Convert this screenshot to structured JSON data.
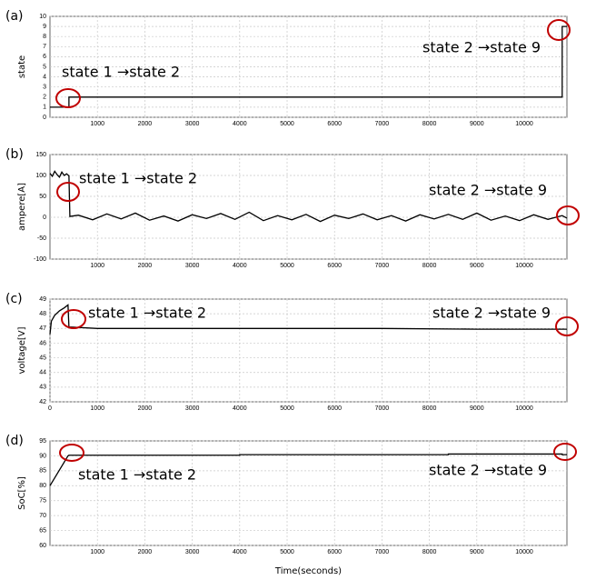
{
  "chart_data": [
    {
      "type": "line",
      "panel_label": "(a)",
      "ylabel": "state",
      "x": [
        0,
        400,
        400,
        10800,
        10800,
        10900
      ],
      "values": [
        1,
        1,
        2,
        2,
        9,
        9
      ],
      "color": "#000000",
      "xlim": [
        0,
        10900
      ],
      "xticks": [
        1000,
        2000,
        3000,
        4000,
        5000,
        6000,
        7000,
        8000,
        9000,
        10000
      ],
      "ylim": [
        0,
        10
      ],
      "yticks": [
        0,
        1,
        2,
        3,
        4,
        5,
        6,
        7,
        8,
        9,
        10
      ],
      "grid": true,
      "annotations": [
        "state 1 →state 2",
        "state 2 →state 9"
      ]
    },
    {
      "type": "line",
      "panel_label": "(b)",
      "ylabel": "ampere[A]",
      "x": [
        0,
        50,
        100,
        150,
        200,
        250,
        300,
        350,
        400,
        420,
        600,
        900,
        1200,
        1500,
        1800,
        2100,
        2400,
        2700,
        3000,
        3300,
        3600,
        3900,
        4200,
        4500,
        4800,
        5100,
        5400,
        5700,
        6000,
        6300,
        6600,
        6900,
        7200,
        7500,
        7800,
        8100,
        8400,
        8700,
        9000,
        9300,
        9600,
        9900,
        10200,
        10500,
        10800,
        10900
      ],
      "values": [
        105,
        98,
        110,
        102,
        96,
        108,
        100,
        104,
        99,
        2,
        5,
        -6,
        8,
        -4,
        10,
        -7,
        3,
        -9,
        6,
        -3,
        9,
        -5,
        12,
        -8,
        4,
        -6,
        7,
        -10,
        5,
        -3,
        8,
        -6,
        4,
        -9,
        6,
        -4,
        7,
        -5,
        10,
        -7,
        3,
        -8,
        6,
        -5,
        4,
        -2
      ],
      "color": "#000000",
      "xlim": [
        0,
        10900
      ],
      "xticks": [
        1000,
        2000,
        3000,
        4000,
        5000,
        6000,
        7000,
        8000,
        9000,
        10000
      ],
      "ylim": [
        -100,
        150
      ],
      "yticks": [
        -100,
        -50,
        0,
        50,
        100,
        150
      ],
      "grid": true,
      "annotations": [
        "state 1 →state 2",
        "state 2 →state 9"
      ]
    },
    {
      "type": "line",
      "panel_label": "(c)",
      "ylabel": "voltage[V]",
      "x": [
        0,
        30,
        100,
        200,
        300,
        380,
        400,
        1000,
        3000,
        5000,
        7000,
        9000,
        10800,
        10900
      ],
      "values": [
        46.6,
        47.5,
        47.9,
        48.2,
        48.4,
        48.6,
        47.1,
        47.0,
        47.0,
        47.0,
        47.0,
        46.95,
        46.95,
        46.95
      ],
      "color": "#000000",
      "xlim": [
        0,
        10900
      ],
      "xticks": [
        0,
        1000,
        2000,
        3000,
        4000,
        5000,
        6000,
        7000,
        8000,
        9000,
        10000
      ],
      "ylim": [
        42,
        49
      ],
      "yticks": [
        42,
        43,
        44,
        45,
        46,
        47,
        48,
        49
      ],
      "grid": true,
      "annotations": [
        "state 1 →state 2",
        "state 2 →state 9"
      ]
    },
    {
      "type": "line",
      "panel_label": "(d)",
      "ylabel": "SoC[%]",
      "xlabel": "Time(seconds)",
      "x": [
        0,
        380,
        400,
        4000,
        4000,
        8400,
        8400,
        10800,
        10800,
        10900
      ],
      "values": [
        80,
        90,
        90.2,
        90.2,
        90.4,
        90.4,
        90.6,
        90.6,
        90.4,
        90.4
      ],
      "color": "#000000",
      "xlim": [
        0,
        10900
      ],
      "xticks": [
        1000,
        2000,
        3000,
        4000,
        5000,
        6000,
        7000,
        8000,
        9000,
        10000
      ],
      "ylim": [
        60,
        95
      ],
      "yticks": [
        60,
        65,
        70,
        75,
        80,
        85,
        90,
        95
      ],
      "grid": true,
      "annotations": [
        "state 1 →state 2",
        "state 2 →state 9"
      ]
    }
  ]
}
